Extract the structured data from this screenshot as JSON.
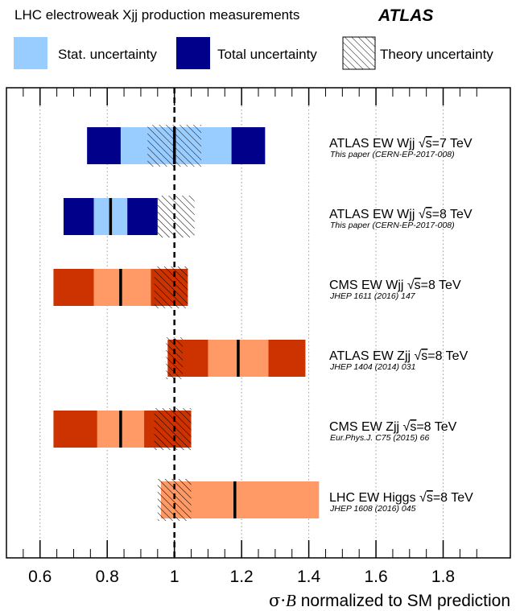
{
  "chart_data": {
    "type": "bar",
    "title": "LHC electroweak Xjj production measurements",
    "experiment_label": "ATLAS",
    "xlabel_sigma": "σ·",
    "xlabel_B": "B",
    "xlabel_rest": " normalized to SM prediction",
    "xlim": [
      0.5,
      2.0
    ],
    "xticks": [
      0.6,
      0.8,
      1.0,
      1.2,
      1.4,
      1.6,
      1.8
    ],
    "xtick_labels": [
      "0.6",
      "0.8",
      "1",
      "1.2",
      "1.4",
      "1.6",
      "1.8"
    ],
    "grid": "vertical dotted at major ticks",
    "sm_reference": 1.0,
    "legend": [
      {
        "label": "Stat. uncertainty",
        "style": "stat"
      },
      {
        "label": "Total uncertainty",
        "style": "total"
      },
      {
        "label": "Theory uncertainty",
        "style": "theory"
      }
    ],
    "colors": {
      "atlas_total": "#00008B",
      "atlas_stat": "#99CCFF",
      "other_total": "#CC3300",
      "other_stat": "#FF9966"
    },
    "measurements": [
      {
        "label": "ATLAS EW Wjj",
        "energy": "s",
        "energy_suffix": "=7 TeV",
        "reference": "This paper (CERN-EP-2017-008)",
        "color_scheme": "atlas",
        "value": 1.0,
        "total": [
          0.74,
          1.27
        ],
        "stat": [
          0.84,
          1.17
        ],
        "theory": [
          0.92,
          1.08
        ]
      },
      {
        "label": "ATLAS EW Wjj",
        "energy": "s",
        "energy_suffix": "=8 TeV",
        "reference": "This paper (CERN-EP-2017-008)",
        "color_scheme": "atlas",
        "value": 0.81,
        "total": [
          0.67,
          0.95
        ],
        "stat": [
          0.76,
          0.86
        ],
        "theory": [
          0.95,
          1.06
        ]
      },
      {
        "label": "CMS EW Wjj",
        "energy": "s",
        "energy_suffix": "=8 TeV",
        "reference": "JHEP 1611 (2016) 147",
        "color_scheme": "other",
        "value": 0.84,
        "total": [
          0.64,
          1.04
        ],
        "stat": [
          0.76,
          0.93
        ],
        "theory": [
          0.94,
          1.04
        ]
      },
      {
        "label": "ATLAS EW Zjj",
        "energy": "s",
        "energy_suffix": "=8 TeV",
        "reference": "JHEP 1404 (2014) 031",
        "color_scheme": "other",
        "value": 1.19,
        "total": [
          0.98,
          1.39
        ],
        "stat": [
          1.1,
          1.28
        ],
        "theory": [
          0.975,
          1.025
        ]
      },
      {
        "label": "CMS EW Zjj",
        "energy": "s",
        "energy_suffix": "=8 TeV",
        "reference": "Eur.Phys.J. C75 (2015) 66",
        "color_scheme": "other",
        "value": 0.84,
        "total": [
          0.64,
          1.05
        ],
        "stat": [
          0.77,
          0.91
        ],
        "theory": [
          0.94,
          1.05
        ]
      },
      {
        "label": "LHC EW Higgs",
        "energy": "s",
        "energy_suffix": "=8 TeV",
        "reference": "JHEP 1608 (2016) 045",
        "color_scheme": "other",
        "value": 1.18,
        "total": [
          0.96,
          1.43
        ],
        "stat": [
          0.96,
          1.43
        ],
        "theory": [
          0.95,
          1.05
        ]
      }
    ]
  }
}
